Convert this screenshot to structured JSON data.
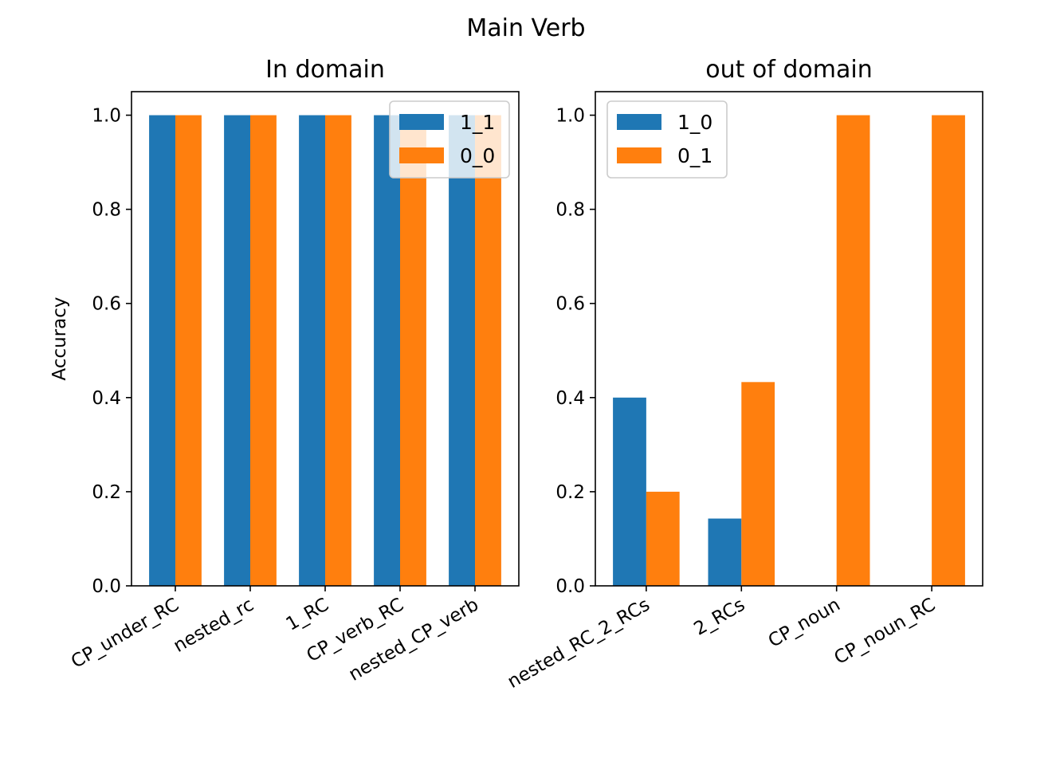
{
  "figure": {
    "title": "Main Verb"
  },
  "chart_data": [
    {
      "type": "bar",
      "title": "In domain",
      "xlabel": "",
      "ylabel": "Accuracy",
      "ylim": [
        0,
        1.05
      ],
      "yticks": [
        "0.0",
        "0.2",
        "0.4",
        "0.6",
        "0.8",
        "1.0"
      ],
      "categories": [
        "CP_under_RC",
        "nested_rc",
        "1_RC",
        "CP_verb_RC",
        "nested_CP_verb"
      ],
      "series": [
        {
          "name": "1_1",
          "color": "#1f77b4",
          "values": [
            1.0,
            1.0,
            1.0,
            1.0,
            1.0
          ]
        },
        {
          "name": "0_0",
          "color": "#ff7f0e",
          "values": [
            1.0,
            1.0,
            1.0,
            1.0,
            1.0
          ]
        }
      ],
      "legend": "upper right",
      "legend_opacity": 0.8,
      "grid": false
    },
    {
      "type": "bar",
      "title": "out of domain",
      "xlabel": "",
      "ylabel": "",
      "ylim": [
        0,
        1.05
      ],
      "yticks": [
        "0.0",
        "0.2",
        "0.4",
        "0.6",
        "0.8",
        "1.0"
      ],
      "categories": [
        "nested_RC_2_RCs",
        "2_RCs",
        "CP_noun",
        "CP_noun_RC"
      ],
      "series": [
        {
          "name": "1_0",
          "color": "#1f77b4",
          "values": [
            0.4,
            0.143,
            0.0,
            0.0
          ]
        },
        {
          "name": "0_1",
          "color": "#ff7f0e",
          "values": [
            0.2,
            0.433,
            1.0,
            1.0
          ]
        }
      ],
      "legend": "upper left",
      "legend_opacity": 0.8,
      "grid": false
    }
  ]
}
